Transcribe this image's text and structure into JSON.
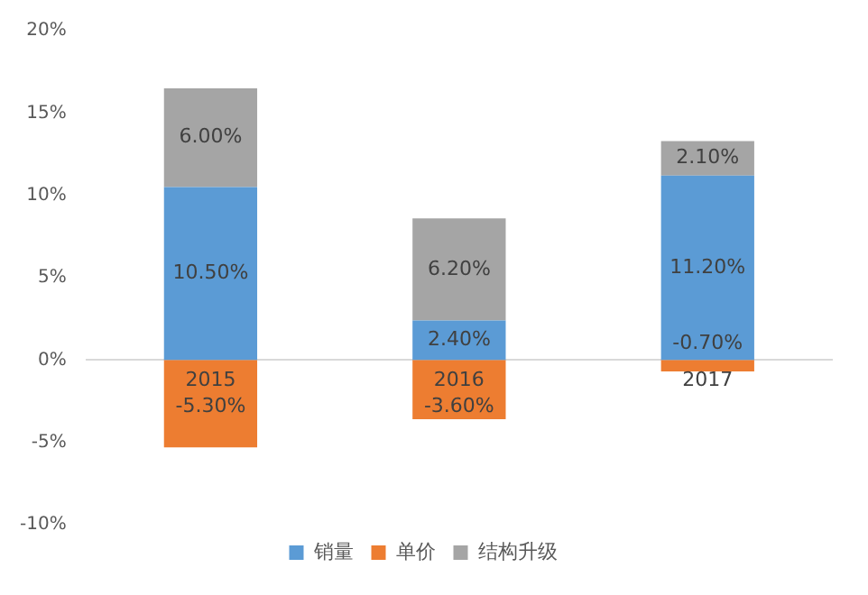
{
  "chart_data": {
    "type": "bar",
    "stacked": true,
    "categories": [
      "2015",
      "2016",
      "2017"
    ],
    "series": [
      {
        "name": "销量",
        "color": "#5b9bd5",
        "values": [
          10.5,
          2.4,
          11.2
        ],
        "value_labels": [
          "10.50%",
          "2.40%",
          "11.20%"
        ]
      },
      {
        "name": "单价",
        "color": "#ed7d31",
        "values": [
          -5.3,
          -3.6,
          -0.7
        ],
        "value_labels": [
          "-5.30%",
          "-3.60%",
          "-0.70%"
        ]
      },
      {
        "name": "结构升级",
        "color": "#a5a5a5",
        "values": [
          6.0,
          6.2,
          2.1
        ],
        "value_labels": [
          "6.00%",
          "6.20%",
          "2.10%"
        ]
      }
    ],
    "ylim": [
      -10,
      20
    ],
    "yticks": [
      {
        "value": -10,
        "label": "-10%"
      },
      {
        "value": -5,
        "label": "-5%"
      },
      {
        "value": 0,
        "label": "0%"
      },
      {
        "value": 5,
        "label": "5%"
      },
      {
        "value": 10,
        "label": "10%"
      },
      {
        "value": 15,
        "label": "15%"
      },
      {
        "value": 20,
        "label": "20%"
      }
    ],
    "grid": false,
    "legend": "bottom"
  }
}
